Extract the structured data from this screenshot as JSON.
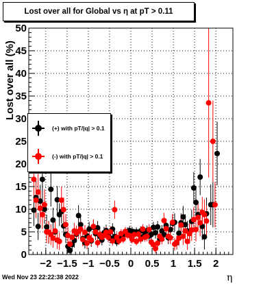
{
  "title": "Lost over all for Global vs   η at pT > 0.11",
  "timestamp": "Wed Nov 23 22:22:38 2022",
  "colors": {
    "series_plus": "#000000",
    "series_minus": "#ff0000",
    "frame": "#000000",
    "grid": "#000000"
  },
  "legend": {
    "plus_label": "(+) with pT/|q| > 0.1",
    "minus_label": "(-) with pT/|q| > 0.1"
  },
  "chart_data": {
    "type": "scatter",
    "xlabel": "η",
    "ylabel": "Lost over all (%)",
    "xlim": [
      -2.4,
      2.4
    ],
    "ylim": [
      0,
      50
    ],
    "x_ticks": [
      -2,
      -1.5,
      -1,
      -0.5,
      0,
      0.5,
      1,
      1.5,
      2
    ],
    "x_tick_labels": [
      "−2",
      "−1.5",
      "−1",
      "−0.5",
      "0",
      "0.5",
      "1",
      "1.5",
      "2"
    ],
    "y_ticks": [
      0,
      5,
      10,
      15,
      20,
      25,
      30,
      35,
      40,
      45,
      50
    ],
    "y_tick_labels": [
      "0",
      "5",
      "10",
      "15",
      "20",
      "25",
      "30",
      "35",
      "40",
      "45",
      "50"
    ],
    "grid": true,
    "legend_position": "left",
    "series": [
      {
        "name": "(+) with pT/|q| > 0.1",
        "color": "#000000",
        "points": [
          {
            "x": -2.28,
            "y": 9.8,
            "err": 3.5
          },
          {
            "x": -2.23,
            "y": 12.6,
            "err": 4.0
          },
          {
            "x": -2.18,
            "y": 6.2,
            "err": 3.0
          },
          {
            "x": -2.13,
            "y": 11.8,
            "err": 3.6
          },
          {
            "x": -2.08,
            "y": 16.6,
            "err": 4.5
          },
          {
            "x": -2.03,
            "y": 10.0,
            "err": 3.2
          },
          {
            "x": -1.98,
            "y": 6.1,
            "err": 2.7
          },
          {
            "x": -1.93,
            "y": 4.9,
            "err": 2.5
          },
          {
            "x": -1.88,
            "y": 14.4,
            "err": 3.8
          },
          {
            "x": -1.83,
            "y": 7.6,
            "err": 2.7
          },
          {
            "x": -1.78,
            "y": 5.0,
            "err": 2.3
          },
          {
            "x": -1.73,
            "y": 12.1,
            "err": 3.0
          },
          {
            "x": -1.68,
            "y": 8.8,
            "err": 2.5
          },
          {
            "x": -1.63,
            "y": 9.5,
            "err": 2.6
          },
          {
            "x": -1.58,
            "y": 6.3,
            "err": 2.2
          },
          {
            "x": -1.53,
            "y": 4.4,
            "err": 1.9
          },
          {
            "x": -1.48,
            "y": 1.8,
            "err": 1.5
          },
          {
            "x": -1.43,
            "y": 0.9,
            "err": 1.2
          },
          {
            "x": -1.38,
            "y": 2.2,
            "err": 1.4
          },
          {
            "x": -1.33,
            "y": 3.1,
            "err": 1.6
          },
          {
            "x": -1.28,
            "y": 4.5,
            "err": 1.8
          },
          {
            "x": -1.23,
            "y": 8.6,
            "err": 2.3
          },
          {
            "x": -1.18,
            "y": 6.6,
            "err": 2.0
          },
          {
            "x": -1.13,
            "y": 3.5,
            "err": 1.5
          },
          {
            "x": -1.08,
            "y": 2.6,
            "err": 1.3
          },
          {
            "x": -1.03,
            "y": 4.1,
            "err": 1.5
          },
          {
            "x": -0.98,
            "y": 5.6,
            "err": 1.6
          },
          {
            "x": -0.93,
            "y": 3.0,
            "err": 1.3
          },
          {
            "x": -0.88,
            "y": 6.0,
            "err": 1.6
          },
          {
            "x": -0.83,
            "y": 4.6,
            "err": 1.4
          },
          {
            "x": -0.78,
            "y": 5.9,
            "err": 1.5
          },
          {
            "x": -0.73,
            "y": 4.0,
            "err": 1.3
          },
          {
            "x": -0.68,
            "y": 3.2,
            "err": 1.2
          },
          {
            "x": -0.63,
            "y": 4.8,
            "err": 1.3
          },
          {
            "x": -0.58,
            "y": 5.3,
            "err": 1.3
          },
          {
            "x": -0.53,
            "y": 4.3,
            "err": 1.2
          },
          {
            "x": -0.48,
            "y": 3.6,
            "err": 1.1
          },
          {
            "x": -0.43,
            "y": 5.6,
            "err": 1.3
          },
          {
            "x": -0.38,
            "y": 4.0,
            "err": 1.1
          },
          {
            "x": -0.33,
            "y": 2.8,
            "err": 1.0
          },
          {
            "x": -0.28,
            "y": 3.4,
            "err": 1.0
          },
          {
            "x": -0.23,
            "y": 3.9,
            "err": 1.0
          },
          {
            "x": -0.18,
            "y": 4.4,
            "err": 1.0
          },
          {
            "x": -0.13,
            "y": 4.8,
            "err": 1.0
          },
          {
            "x": -0.08,
            "y": 5.0,
            "err": 1.0
          },
          {
            "x": -0.03,
            "y": 5.3,
            "err": 1.0
          },
          {
            "x": 0.03,
            "y": 5.1,
            "err": 1.0
          },
          {
            "x": 0.08,
            "y": 4.7,
            "err": 1.0
          },
          {
            "x": 0.13,
            "y": 5.0,
            "err": 1.0
          },
          {
            "x": 0.18,
            "y": 4.5,
            "err": 1.0
          },
          {
            "x": 0.23,
            "y": 5.2,
            "err": 1.0
          },
          {
            "x": 0.28,
            "y": 3.9,
            "err": 1.0
          },
          {
            "x": 0.33,
            "y": 4.6,
            "err": 1.1
          },
          {
            "x": 0.38,
            "y": 5.3,
            "err": 1.1
          },
          {
            "x": 0.43,
            "y": 4.1,
            "err": 1.1
          },
          {
            "x": 0.48,
            "y": 4.4,
            "err": 1.2
          },
          {
            "x": 0.53,
            "y": 6.0,
            "err": 1.2
          },
          {
            "x": 0.58,
            "y": 4.8,
            "err": 1.3
          },
          {
            "x": 0.63,
            "y": 6.1,
            "err": 1.3
          },
          {
            "x": 0.68,
            "y": 3.4,
            "err": 1.2
          },
          {
            "x": 0.73,
            "y": 5.2,
            "err": 1.3
          },
          {
            "x": 0.78,
            "y": 4.4,
            "err": 1.4
          },
          {
            "x": 0.83,
            "y": 6.4,
            "err": 1.5
          },
          {
            "x": 0.88,
            "y": 3.7,
            "err": 1.4
          },
          {
            "x": 0.93,
            "y": 5.5,
            "err": 1.6
          },
          {
            "x": 0.98,
            "y": 6.9,
            "err": 1.8
          },
          {
            "x": 1.03,
            "y": 7.1,
            "err": 2.0
          },
          {
            "x": 1.08,
            "y": 2.6,
            "err": 1.5
          },
          {
            "x": 1.13,
            "y": 4.7,
            "err": 1.8
          },
          {
            "x": 1.18,
            "y": 7.0,
            "err": 2.1
          },
          {
            "x": 1.23,
            "y": 8.3,
            "err": 2.4
          },
          {
            "x": 1.28,
            "y": 6.6,
            "err": 2.3
          },
          {
            "x": 1.33,
            "y": 5.2,
            "err": 2.2
          },
          {
            "x": 1.38,
            "y": 4.7,
            "err": 2.2
          },
          {
            "x": 1.43,
            "y": 7.3,
            "err": 2.6
          },
          {
            "x": 1.48,
            "y": 14.7,
            "err": 3.5
          },
          {
            "x": 1.53,
            "y": 11.5,
            "err": 3.2
          },
          {
            "x": 1.58,
            "y": 8.8,
            "err": 3.0
          },
          {
            "x": 1.63,
            "y": 17.1,
            "err": 4.0
          },
          {
            "x": 1.68,
            "y": 6.2,
            "err": 3.0
          },
          {
            "x": 1.73,
            "y": 3.9,
            "err": 2.8
          },
          {
            "x": 1.78,
            "y": 9.0,
            "err": 3.6
          },
          {
            "x": 1.88,
            "y": 11.0,
            "err": 4.5
          },
          {
            "x": 1.93,
            "y": 11.0,
            "err": 5.0
          },
          {
            "x": 2.03,
            "y": 22.3,
            "err": 7.0
          }
        ]
      },
      {
        "name": "(-) with pT/|q| > 0.1",
        "color": "#ff0000",
        "points": [
          {
            "x": -2.28,
            "y": 16.6,
            "err": 4.5
          },
          {
            "x": -2.23,
            "y": 12.0,
            "err": 4.0
          },
          {
            "x": -2.18,
            "y": 13.8,
            "err": 4.0
          },
          {
            "x": -2.13,
            "y": 10.2,
            "err": 3.5
          },
          {
            "x": -2.08,
            "y": 8.8,
            "err": 3.2
          },
          {
            "x": -2.03,
            "y": 11.0,
            "err": 3.4
          },
          {
            "x": -1.98,
            "y": 5.0,
            "err": 2.5
          },
          {
            "x": -1.93,
            "y": 4.9,
            "err": 2.4
          },
          {
            "x": -1.88,
            "y": 4.4,
            "err": 2.3
          },
          {
            "x": -1.83,
            "y": 3.6,
            "err": 2.1
          },
          {
            "x": -1.78,
            "y": 5.2,
            "err": 2.2
          },
          {
            "x": -1.73,
            "y": 3.2,
            "err": 2.0
          },
          {
            "x": -1.68,
            "y": 2.9,
            "err": 1.9
          },
          {
            "x": -1.63,
            "y": 12.0,
            "err": 3.0
          },
          {
            "x": -1.58,
            "y": 9.9,
            "err": 2.7
          },
          {
            "x": -1.53,
            "y": 6.6,
            "err": 2.3
          },
          {
            "x": -1.48,
            "y": 4.2,
            "err": 1.9
          },
          {
            "x": -1.43,
            "y": 2.3,
            "err": 1.6
          },
          {
            "x": -1.38,
            "y": 3.8,
            "err": 1.7
          },
          {
            "x": -1.33,
            "y": 5.2,
            "err": 1.8
          },
          {
            "x": -1.28,
            "y": 4.7,
            "err": 1.7
          },
          {
            "x": -1.23,
            "y": 5.1,
            "err": 1.7
          },
          {
            "x": -1.18,
            "y": 5.6,
            "err": 1.8
          },
          {
            "x": -1.13,
            "y": 3.3,
            "err": 1.5
          },
          {
            "x": -1.08,
            "y": 4.9,
            "err": 1.6
          },
          {
            "x": -1.03,
            "y": 2.5,
            "err": 1.3
          },
          {
            "x": -0.98,
            "y": 3.7,
            "err": 1.4
          },
          {
            "x": -0.93,
            "y": 3.2,
            "err": 1.3
          },
          {
            "x": -0.88,
            "y": 6.2,
            "err": 1.6
          },
          {
            "x": -0.83,
            "y": 5.0,
            "err": 1.4
          },
          {
            "x": -0.78,
            "y": 2.6,
            "err": 1.1
          },
          {
            "x": -0.73,
            "y": 4.4,
            "err": 1.3
          },
          {
            "x": -0.68,
            "y": 3.8,
            "err": 1.2
          },
          {
            "x": -0.63,
            "y": 4.2,
            "err": 1.2
          },
          {
            "x": -0.58,
            "y": 4.9,
            "err": 1.3
          },
          {
            "x": -0.53,
            "y": 3.8,
            "err": 1.1
          },
          {
            "x": -0.48,
            "y": 5.0,
            "err": 1.2
          },
          {
            "x": -0.43,
            "y": 3.0,
            "err": 1.0
          },
          {
            "x": -0.38,
            "y": 9.9,
            "err": 2.0
          },
          {
            "x": -0.33,
            "y": 3.8,
            "err": 1.0
          },
          {
            "x": -0.28,
            "y": 3.0,
            "err": 0.9
          },
          {
            "x": -0.23,
            "y": 4.6,
            "err": 1.0
          },
          {
            "x": -0.18,
            "y": 3.4,
            "err": 0.9
          },
          {
            "x": -0.13,
            "y": 5.1,
            "err": 1.0
          },
          {
            "x": -0.08,
            "y": 4.3,
            "err": 0.9
          },
          {
            "x": -0.03,
            "y": 4.2,
            "err": 0.9
          },
          {
            "x": 0.03,
            "y": 3.3,
            "err": 0.9
          },
          {
            "x": 0.08,
            "y": 4.4,
            "err": 0.9
          },
          {
            "x": 0.13,
            "y": 2.9,
            "err": 0.9
          },
          {
            "x": 0.18,
            "y": 4.5,
            "err": 1.0
          },
          {
            "x": 0.23,
            "y": 3.4,
            "err": 1.0
          },
          {
            "x": 0.28,
            "y": 5.6,
            "err": 1.1
          },
          {
            "x": 0.33,
            "y": 3.8,
            "err": 1.0
          },
          {
            "x": 0.38,
            "y": 4.0,
            "err": 1.1
          },
          {
            "x": 0.43,
            "y": 5.5,
            "err": 1.2
          },
          {
            "x": 0.48,
            "y": 2.7,
            "err": 1.0
          },
          {
            "x": 0.53,
            "y": 2.2,
            "err": 1.0
          },
          {
            "x": 0.58,
            "y": 1.3,
            "err": 1.0
          },
          {
            "x": 0.63,
            "y": 2.5,
            "err": 1.1
          },
          {
            "x": 0.68,
            "y": 4.0,
            "err": 1.3
          },
          {
            "x": 0.73,
            "y": 3.4,
            "err": 1.2
          },
          {
            "x": 0.78,
            "y": 7.5,
            "err": 1.7
          },
          {
            "x": 0.83,
            "y": 5.7,
            "err": 1.5
          },
          {
            "x": 0.88,
            "y": 4.0,
            "err": 1.4
          },
          {
            "x": 0.93,
            "y": 3.7,
            "err": 1.4
          },
          {
            "x": 0.98,
            "y": 7.1,
            "err": 1.9
          },
          {
            "x": 1.03,
            "y": 2.3,
            "err": 1.4
          },
          {
            "x": 1.08,
            "y": 2.7,
            "err": 1.5
          },
          {
            "x": 1.13,
            "y": 3.6,
            "err": 1.7
          },
          {
            "x": 1.18,
            "y": 6.5,
            "err": 2.1
          },
          {
            "x": 1.23,
            "y": 4.0,
            "err": 1.9
          },
          {
            "x": 1.28,
            "y": 5.2,
            "err": 2.1
          },
          {
            "x": 1.33,
            "y": 2.9,
            "err": 1.9
          },
          {
            "x": 1.38,
            "y": 4.6,
            "err": 2.2
          },
          {
            "x": 1.43,
            "y": 5.4,
            "err": 2.4
          },
          {
            "x": 1.48,
            "y": 7.7,
            "err": 2.8
          },
          {
            "x": 1.53,
            "y": 5.5,
            "err": 2.6
          },
          {
            "x": 1.58,
            "y": 8.2,
            "err": 3.0
          },
          {
            "x": 1.63,
            "y": 7.0,
            "err": 3.0
          },
          {
            "x": 1.68,
            "y": 9.3,
            "err": 3.4
          },
          {
            "x": 1.73,
            "y": 8.8,
            "err": 3.4
          },
          {
            "x": 1.78,
            "y": 7.4,
            "err": 3.4
          },
          {
            "x": 1.83,
            "y": 33.5,
            "err": 16.5
          },
          {
            "x": 1.93,
            "y": 25.0,
            "err": 9.0
          },
          {
            "x": 1.98,
            "y": 11.0,
            "err": 5.0
          }
        ]
      }
    ]
  }
}
